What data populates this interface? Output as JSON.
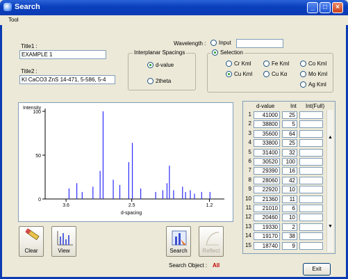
{
  "window": {
    "title": "Search",
    "min": "_",
    "max": "□",
    "close": "×"
  },
  "menu": {
    "tool": "Tool"
  },
  "title1": {
    "label": "Title1 :",
    "value": "EXAMPLE 1"
  },
  "title2": {
    "label": "Title2 :",
    "value": "KI CaCO3 ZnS 14-471, 5-586, 5-4"
  },
  "wavelength": {
    "label": "Wavelength :",
    "input_label": "Input",
    "input_value": ""
  },
  "interplanar": {
    "title": "Interplanar Spacings",
    "options": [
      {
        "label": "d-value",
        "selected": true
      },
      {
        "label": "2theta",
        "selected": false
      }
    ]
  },
  "selection": {
    "label": "Selection",
    "options": [
      {
        "label": "Cr Kml",
        "selected": false
      },
      {
        "label": "Fe Kml",
        "selected": false
      },
      {
        "label": "Co Kml",
        "selected": false
      },
      {
        "label": "Cu Kml",
        "selected": true
      },
      {
        "label": "Cu Kα",
        "selected": false
      },
      {
        "label": "Mo Kml",
        "selected": false
      },
      {
        "label": "Ag Kml",
        "selected": false
      }
    ]
  },
  "chart_data": {
    "type": "bar",
    "title": "",
    "ylabel": "Intensity",
    "xlabel": "d-spacing",
    "ylim": [
      0,
      100
    ],
    "yticks": [
      "100",
      "50",
      "0"
    ],
    "xticks": [
      "3.6",
      "2.5",
      "1.2"
    ],
    "xlim": [
      3.95,
      0.95
    ],
    "bars": [
      {
        "x": 3.55,
        "y": 12
      },
      {
        "x": 3.42,
        "y": 18
      },
      {
        "x": 3.33,
        "y": 8
      },
      {
        "x": 3.15,
        "y": 14
      },
      {
        "x": 3.03,
        "y": 32
      },
      {
        "x": 2.98,
        "y": 100
      },
      {
        "x": 2.81,
        "y": 22
      },
      {
        "x": 2.7,
        "y": 16
      },
      {
        "x": 2.55,
        "y": 42
      },
      {
        "x": 2.49,
        "y": 64
      },
      {
        "x": 2.35,
        "y": 12
      },
      {
        "x": 2.1,
        "y": 8
      },
      {
        "x": 1.98,
        "y": 10
      },
      {
        "x": 1.91,
        "y": 18
      },
      {
        "x": 1.87,
        "y": 38
      },
      {
        "x": 1.8,
        "y": 10
      },
      {
        "x": 1.65,
        "y": 14
      },
      {
        "x": 1.6,
        "y": 8
      },
      {
        "x": 1.52,
        "y": 10
      },
      {
        "x": 1.45,
        "y": 6
      },
      {
        "x": 1.33,
        "y": 8
      },
      {
        "x": 1.19,
        "y": 8
      }
    ]
  },
  "toolbar": {
    "clear": "Clear",
    "view": "View",
    "search": "Search",
    "reflect": "Reflect"
  },
  "search_object": {
    "label": "Search Object :",
    "value": "All"
  },
  "table": {
    "headers": [
      "d-value",
      "Int",
      "Int(Full)"
    ],
    "rows": [
      [
        "1",
        "41000",
        "25"
      ],
      [
        "2",
        "38800",
        "5"
      ],
      [
        "3",
        "35600",
        "64"
      ],
      [
        "4",
        "33800",
        "25"
      ],
      [
        "5",
        "31400",
        "32"
      ],
      [
        "6",
        "30520",
        "100"
      ],
      [
        "7",
        "29390",
        "16"
      ],
      [
        "8",
        "28060",
        "42"
      ],
      [
        "9",
        "22920",
        "10"
      ],
      [
        "10",
        "21360",
        "11"
      ],
      [
        "11",
        "21010",
        "6"
      ],
      [
        "12",
        "20460",
        "10"
      ],
      [
        "13",
        "19330",
        "2"
      ],
      [
        "14",
        "19170",
        "38"
      ],
      [
        "15",
        "18740",
        "9"
      ]
    ],
    "scroll_up": "▲",
    "scroll_down": "▼"
  },
  "exit": "Exit"
}
